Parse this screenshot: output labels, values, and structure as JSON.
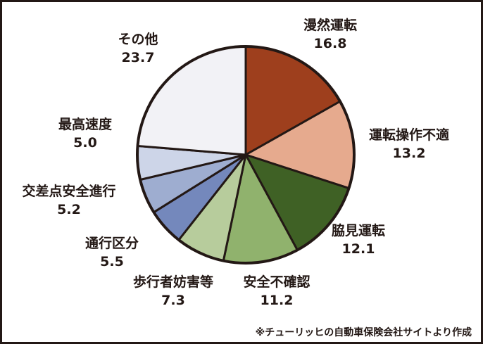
{
  "chart_data": {
    "type": "pie",
    "series": [
      {
        "name": "漫然運転",
        "value": 16.8,
        "color": "#9E3F1D"
      },
      {
        "name": "運転操作不適",
        "value": 13.2,
        "color": "#E6AA8E"
      },
      {
        "name": "脇見運転",
        "value": 12.1,
        "color": "#3F6125"
      },
      {
        "name": "安全不確認",
        "value": 11.2,
        "color": "#90B26D"
      },
      {
        "name": "歩行者妨害等",
        "value": 7.3,
        "color": "#B7CC9C"
      },
      {
        "name": "通行区分",
        "value": 5.5,
        "color": "#7488BC"
      },
      {
        "name": "交差点安全進行",
        "value": 5.2,
        "color": "#9EADD0"
      },
      {
        "name": "最高速度",
        "value": 5.0,
        "color": "#CDD5E8"
      },
      {
        "name": "その他",
        "value": 23.7,
        "color": "#F2F2F6"
      }
    ],
    "start_angle_deg": 0,
    "direction": "clockwise",
    "outline_color": "#231815",
    "source_note": "※チューリッヒの自動車保険会社サイトより作成"
  }
}
